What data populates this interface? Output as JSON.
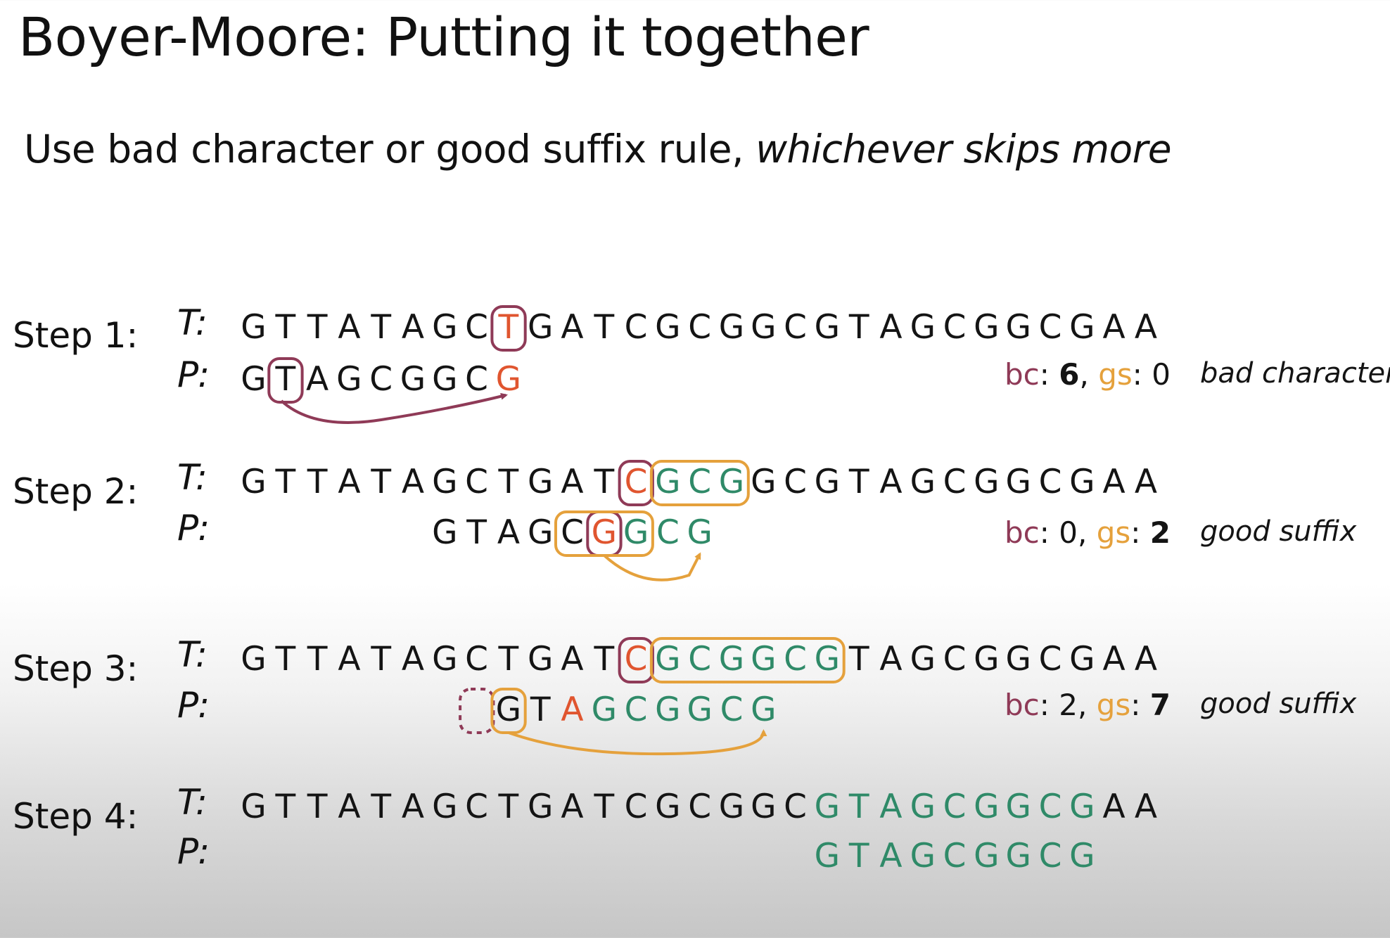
{
  "title": "Boyer-Moore: Putting it together",
  "subtitle": {
    "plain": "Use bad character or good suffix rule, ",
    "emphasis": "whichever skips more"
  },
  "colors": {
    "bc": "#8f3a57",
    "gs": "#e5a13c",
    "mismatch": "#e0552f",
    "match": "#2f8a68",
    "text": "#141414"
  },
  "steps": [
    {
      "label": "Step 1:",
      "t_label": "T:",
      "p_label": "P:",
      "text": "GTTATAGCTGATCGCGGCGTAGCGGCGAA",
      "pattern": "GTAGCGGCG",
      "offset": 0,
      "text_colors": "kkkkkkkkokkkkkkkkkkkkkkkkkkkk",
      "pattern_colors": "kkkkkkkko",
      "stats": {
        "bc_label": "bc",
        "bc_value": "6",
        "gs_label": "gs",
        "gs_value": "0"
      },
      "rule": "bad character"
    },
    {
      "label": "Step 2:",
      "t_label": "T:",
      "p_label": "P:",
      "text": "GTTATAGCTGATCGCGGCGTAGCGGCGAA",
      "pattern": "GTAGCGGCG",
      "offset": 6,
      "text_colors": "kkkkkkkkkkkkogggkkkkkkkkkkkkk",
      "pattern_colors": "kkkkkoggg",
      "stats": {
        "bc_label": "bc",
        "bc_value": "0",
        "gs_label": "gs",
        "gs_value": "2"
      },
      "rule": "good suffix"
    },
    {
      "label": "Step 3:",
      "t_label": "T:",
      "p_label": "P:",
      "text": "GTTATAGCTGATCGCGGCGTAGCGGCGAA",
      "pattern": "GTAGCGGCG",
      "offset": 8,
      "text_colors": "kkkkkkkkkkkkoggggggkkkkkkkkkk",
      "pattern_colors": "kkogggggg",
      "stats": {
        "bc_label": "bc",
        "bc_value": "2",
        "gs_label": "gs",
        "gs_value": "7"
      },
      "rule": "good suffix"
    },
    {
      "label": "Step 4:",
      "t_label": "T:",
      "p_label": "P:",
      "text": "GTTATAGCTGATCGCGGCGTAGCGGCGAA",
      "pattern": "GTAGCGGCG",
      "offset": 18,
      "text_colors": "kkkkkkkkkkkkkkkkkkgggggggggkk",
      "pattern_colors": "ggggggggg",
      "stats": null,
      "rule": ""
    }
  ]
}
